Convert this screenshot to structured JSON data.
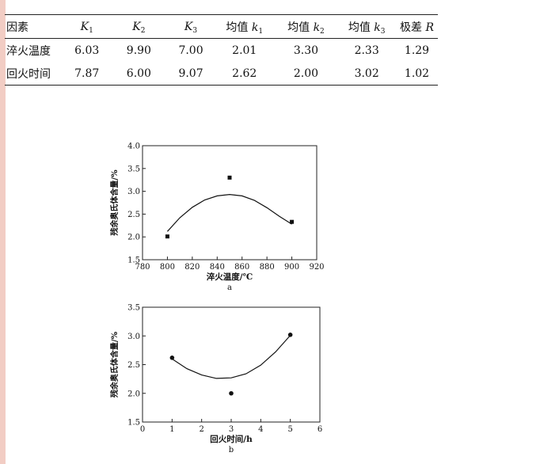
{
  "table": {
    "header": {
      "factor": "因素",
      "K1": {
        "base": "K",
        "sub": "1"
      },
      "K2": {
        "base": "K",
        "sub": "2"
      },
      "K3": {
        "base": "K",
        "sub": "3"
      },
      "k1": {
        "prefix": "均值 ",
        "base": "k",
        "sub": "1"
      },
      "k2": {
        "prefix": "均值 ",
        "base": "k",
        "sub": "2"
      },
      "k3": {
        "prefix": "均值 ",
        "base": "k",
        "sub": "3"
      },
      "range": {
        "prefix": "极差 ",
        "base": "R"
      }
    },
    "rows": [
      {
        "name": "淬火温度",
        "values": [
          "6.03",
          "9.90",
          "7.00",
          "2.01",
          "3.30",
          "2.33",
          "1.29"
        ]
      },
      {
        "name": "回火时间",
        "values": [
          "7.87",
          "6.00",
          "9.07",
          "2.62",
          "2.00",
          "3.02",
          "1.02"
        ]
      }
    ]
  },
  "chart_data": [
    {
      "type": "scatter",
      "panel_label": "a",
      "xlabel": "淬火温度/℃",
      "ylabel": "残余奥氏体含量/%",
      "xlim": [
        780,
        920
      ],
      "ylim": [
        1.5,
        4.0
      ],
      "x_ticks": [
        "780",
        "800",
        "820",
        "840",
        "860",
        "880",
        "900",
        "920"
      ],
      "y_ticks": [
        "1.5",
        "2.0",
        "2.5",
        "3.0",
        "3.5",
        "4.0"
      ],
      "marker": "square",
      "points": [
        {
          "x": 800,
          "y": 2.01
        },
        {
          "x": 850,
          "y": 3.3
        },
        {
          "x": 900,
          "y": 2.33
        }
      ],
      "fit_curve": [
        [
          800,
          2.12
        ],
        [
          810,
          2.42
        ],
        [
          820,
          2.65
        ],
        [
          830,
          2.81
        ],
        [
          840,
          2.9
        ],
        [
          850,
          2.93
        ],
        [
          860,
          2.9
        ],
        [
          870,
          2.8
        ],
        [
          880,
          2.64
        ],
        [
          890,
          2.45
        ],
        [
          900,
          2.28
        ]
      ]
    },
    {
      "type": "scatter",
      "panel_label": "b",
      "xlabel": "回火时间/h",
      "ylabel": "残余奥氏体含量/%",
      "xlim": [
        0,
        6
      ],
      "ylim": [
        1.5,
        3.5
      ],
      "x_ticks": [
        "0",
        "1",
        "2",
        "3",
        "4",
        "5",
        "6"
      ],
      "y_ticks": [
        "1.5",
        "2.0",
        "2.5",
        "3.0",
        "3.5"
      ],
      "marker": "circle",
      "points": [
        {
          "x": 1,
          "y": 2.62
        },
        {
          "x": 3,
          "y": 2.0
        },
        {
          "x": 5,
          "y": 3.02
        }
      ],
      "fit_curve": [
        [
          1,
          2.6
        ],
        [
          1.5,
          2.43
        ],
        [
          2,
          2.32
        ],
        [
          2.5,
          2.26
        ],
        [
          3,
          2.27
        ],
        [
          3.5,
          2.34
        ],
        [
          4,
          2.49
        ],
        [
          4.5,
          2.72
        ],
        [
          5,
          3.01
        ]
      ]
    }
  ]
}
